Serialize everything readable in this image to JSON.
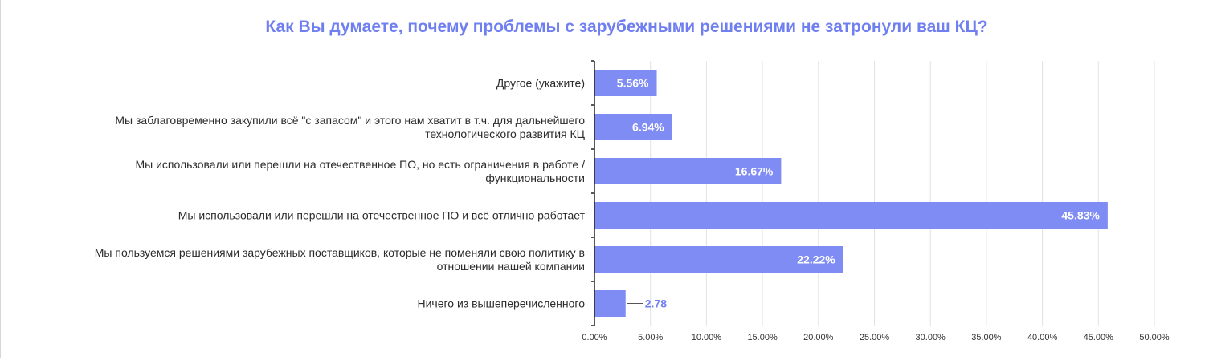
{
  "chart_data": {
    "type": "bar",
    "orientation": "horizontal",
    "title": "Как Вы думаете, почему проблемы с зарубежными решениями не затронули ваш КЦ?",
    "categories": [
      [
        "Другое (укажите)"
      ],
      [
        "Мы заблаговременно закупили всё \"с запасом\" и этого нам хватит в т.ч. для дальнейшего",
        "технологического развития КЦ"
      ],
      [
        "Мы использовали или перешли на отечественное ПО, но есть ограничения в работе /",
        "функциональности"
      ],
      [
        "Мы использовали или перешли на отечественное ПО и всё отлично работает"
      ],
      [
        "Мы пользуемся решениями зарубежных поставщиков, которые не поменяли свою политику в",
        "отношении нашей компании"
      ],
      [
        "Ничего из вышеперечисленного"
      ]
    ],
    "values": [
      5.56,
      6.94,
      16.67,
      45.83,
      22.22,
      2.78
    ],
    "data_labels": [
      "5.56%",
      "6.94%",
      "16.67%",
      "45.83%",
      "22.22%",
      "2.78"
    ],
    "xlim": [
      0,
      50
    ],
    "x_ticks": [
      "0.00%",
      "5.00%",
      "10.00%",
      "15.00%",
      "20.00%",
      "25.00%",
      "30.00%",
      "35.00%",
      "40.00%",
      "45.00%",
      "50.00%"
    ],
    "grid": true,
    "bar_color": "#7f8cf4",
    "title_color": "#6f7ff0"
  }
}
